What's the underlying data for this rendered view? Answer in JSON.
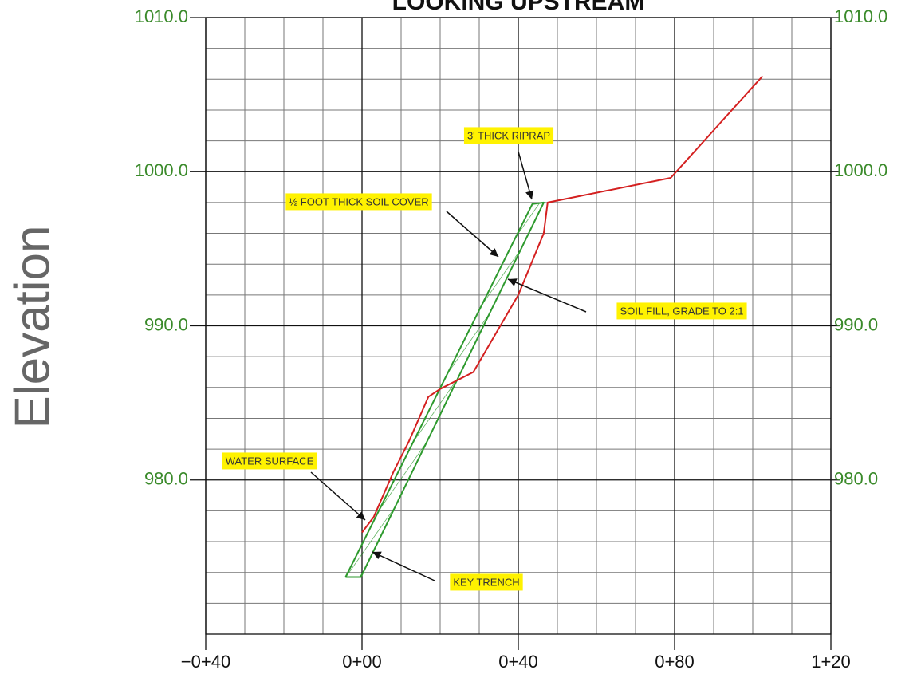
{
  "chart_data": {
    "type": "line",
    "title": "LOOKING UPSTREAM",
    "ylabel": "Elevation",
    "xlim": [
      -40,
      120
    ],
    "ylim": [
      970,
      1010
    ],
    "xticks": [
      {
        "value": -40,
        "label": "−0+40"
      },
      {
        "value": 0,
        "label": "0+00"
      },
      {
        "value": 40,
        "label": "0+40"
      },
      {
        "value": 80,
        "label": "0+80"
      },
      {
        "value": 120,
        "label": "1+20"
      }
    ],
    "yticks": [
      {
        "value": 980,
        "label": "980.0"
      },
      {
        "value": 990,
        "label": "990.0"
      },
      {
        "value": 1000,
        "label": "1000.0"
      },
      {
        "value": 1010,
        "label": "1010.0"
      }
    ],
    "minor_xticks": [
      -30,
      -20,
      -10,
      10,
      20,
      30,
      50,
      60,
      70,
      90,
      100,
      110
    ],
    "minor_yticks": [
      972,
      974,
      976,
      978,
      982,
      984,
      986,
      988,
      992,
      994,
      996,
      998,
      1002,
      1004,
      1006,
      1008
    ],
    "grid": true,
    "series": [
      {
        "color": "#2e9a2e",
        "x": [
          -4.2,
          43.6,
          46.5,
          -0.3,
          -4.2
        ],
        "values": [
          973.7,
          997.9,
          998.0,
          973.7,
          973.7
        ]
      },
      {
        "color": "#d42020",
        "x": [
          0,
          3,
          8,
          12,
          17,
          20,
          28.5,
          40,
          46.5,
          47.5,
          79,
          102.5
        ],
        "values": [
          976.6,
          977.6,
          980.5,
          982.5,
          985.4,
          985.9,
          987.0,
          992.0,
          996.0,
          998.0,
          999.6,
          1006.2
        ]
      }
    ],
    "annotations": [
      "3' THICK RIPRAP",
      "½ FOOT THICK SOIL COVER",
      "SOIL FILL, GRADE TO 2:1",
      "WATER SURFACE",
      "KEY TRENCH"
    ]
  }
}
